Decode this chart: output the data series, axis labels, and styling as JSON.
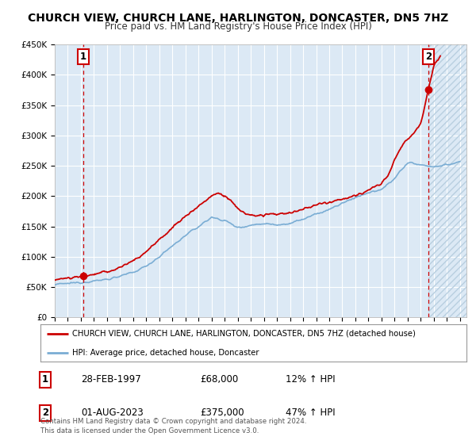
{
  "title": "CHURCH VIEW, CHURCH LANE, HARLINGTON, DONCASTER, DN5 7HZ",
  "subtitle": "Price paid vs. HM Land Registry's House Price Index (HPI)",
  "ylim": [
    0,
    450000
  ],
  "yticks": [
    0,
    50000,
    100000,
    150000,
    200000,
    250000,
    300000,
    350000,
    400000,
    450000
  ],
  "ytick_labels": [
    "£0",
    "£50K",
    "£100K",
    "£150K",
    "£200K",
    "£250K",
    "£300K",
    "£350K",
    "£400K",
    "£450K"
  ],
  "xlim_start": 1995.0,
  "xlim_end": 2026.5,
  "xticks": [
    1995,
    1996,
    1997,
    1998,
    1999,
    2000,
    2001,
    2002,
    2003,
    2004,
    2005,
    2006,
    2007,
    2008,
    2009,
    2010,
    2011,
    2012,
    2013,
    2014,
    2015,
    2016,
    2017,
    2018,
    2019,
    2020,
    2021,
    2022,
    2023,
    2024,
    2025,
    2026
  ],
  "plot_bg_color": "#dce9f5",
  "grid_color": "#ffffff",
  "red_line_color": "#cc0000",
  "blue_line_color": "#7aadd4",
  "dashed_line_color": "#cc0000",
  "hatch_color": "#b8cfe0",
  "marker1_x": 1997.167,
  "marker1_y": 68000,
  "marker2_x": 2023.583,
  "marker2_y": 375000,
  "legend_line1": "CHURCH VIEW, CHURCH LANE, HARLINGTON, DONCASTER, DN5 7HZ (detached house)",
  "legend_line2": "HPI: Average price, detached house, Doncaster",
  "marker1_date": "28-FEB-1997",
  "marker1_price": "£68,000",
  "marker1_hpi": "12% ↑ HPI",
  "marker2_date": "01-AUG-2023",
  "marker2_price": "£375,000",
  "marker2_hpi": "47% ↑ HPI",
  "footnote": "Contains HM Land Registry data © Crown copyright and database right 2024.\nThis data is licensed under the Open Government Licence v3.0."
}
